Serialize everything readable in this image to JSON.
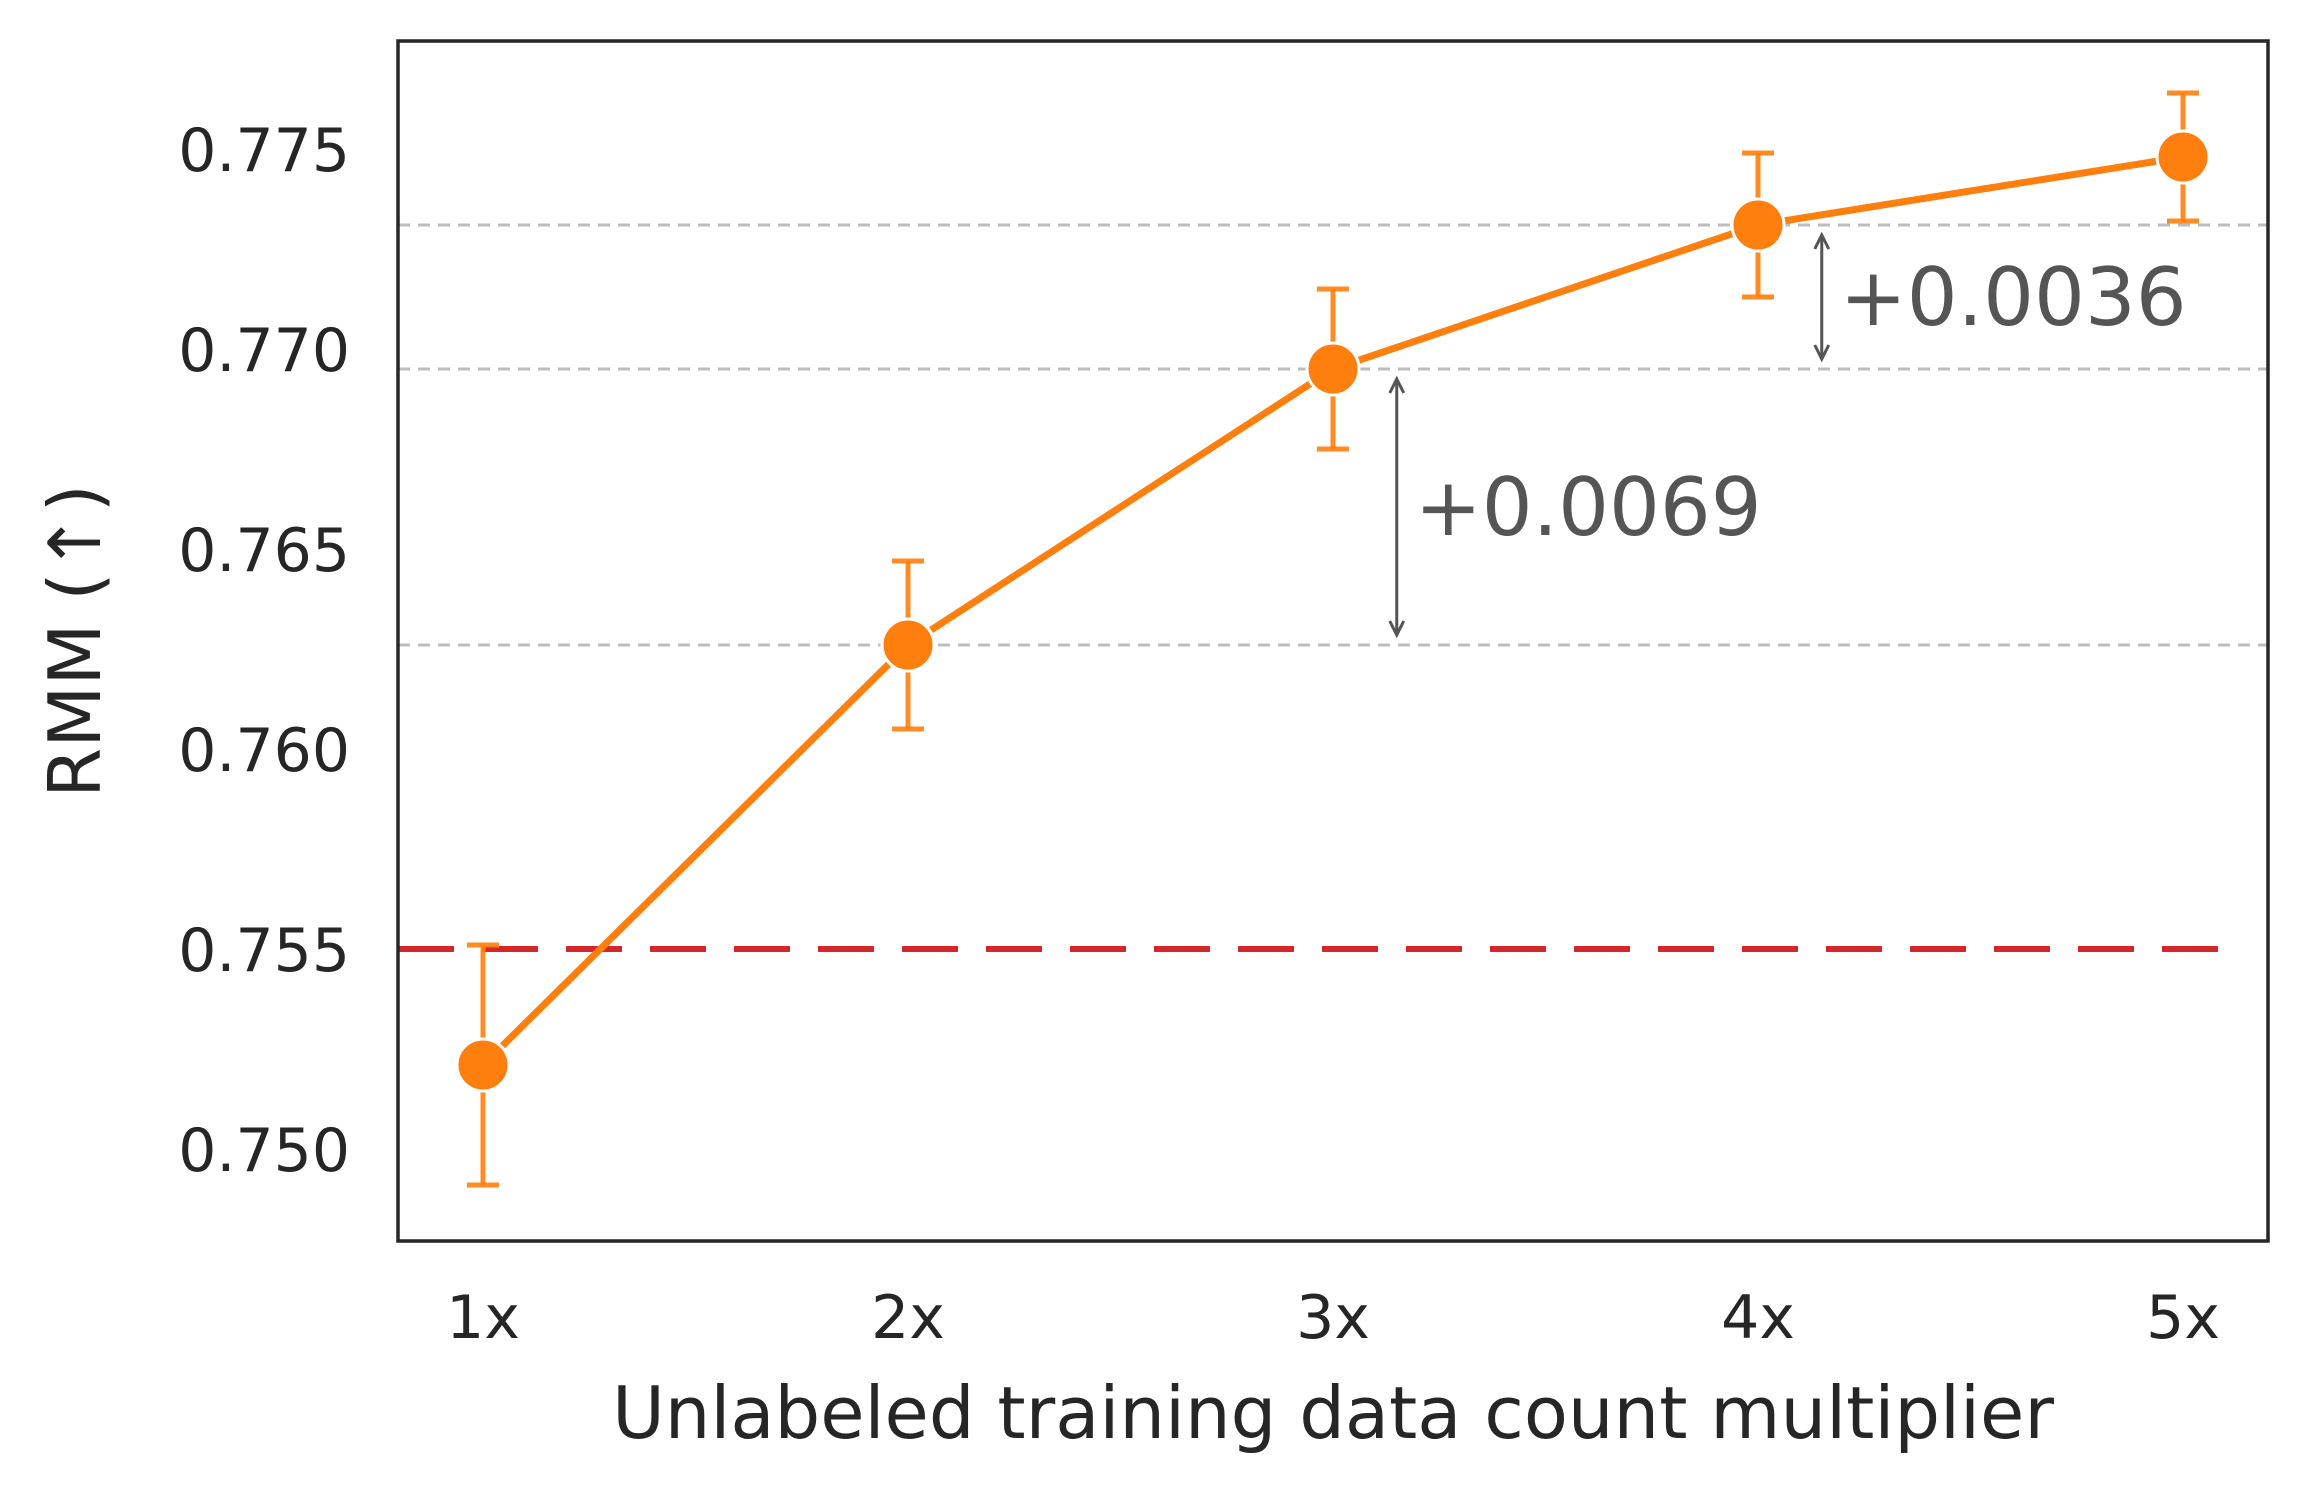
{
  "chart_data": {
    "type": "line",
    "title": "",
    "xlabel": "Unlabeled training data count multiplier",
    "ylabel": "RMM (↑)",
    "categories": [
      "1x",
      "2x",
      "3x",
      "4x",
      "5x"
    ],
    "x": [
      1,
      2,
      3,
      4,
      5
    ],
    "series": [
      {
        "values": [
          0.7521,
          0.7626,
          0.7695,
          0.7731,
          0.7748
        ],
        "error_low": [
          0.7491,
          0.7605,
          0.7675,
          0.7713,
          0.7732
        ],
        "error_high": [
          0.7551,
          0.7647,
          0.7715,
          0.7749,
          0.7764
        ],
        "color": "#ff7f0e"
      }
    ],
    "reference_line": {
      "value": 0.755,
      "color": "#d62728",
      "style": "dashed"
    },
    "guide_lines": [
      0.7626,
      0.7695,
      0.7731
    ],
    "annotations": [
      {
        "text": "+0.0069",
        "x": 3.15,
        "from": 0.7626,
        "to": 0.7695
      },
      {
        "text": "+0.0036",
        "x": 4.15,
        "from": 0.7695,
        "to": 0.7731
      }
    ],
    "yticks": [
      0.75,
      0.755,
      0.76,
      0.765,
      0.77,
      0.775
    ],
    "ytick_labels": [
      "0.750",
      "0.755",
      "0.760",
      "0.765",
      "0.770",
      "0.775"
    ],
    "xlim": [
      0.8,
      5.2
    ],
    "ylim": [
      0.7477,
      0.7777
    ],
    "grid": false,
    "legend": "none"
  }
}
